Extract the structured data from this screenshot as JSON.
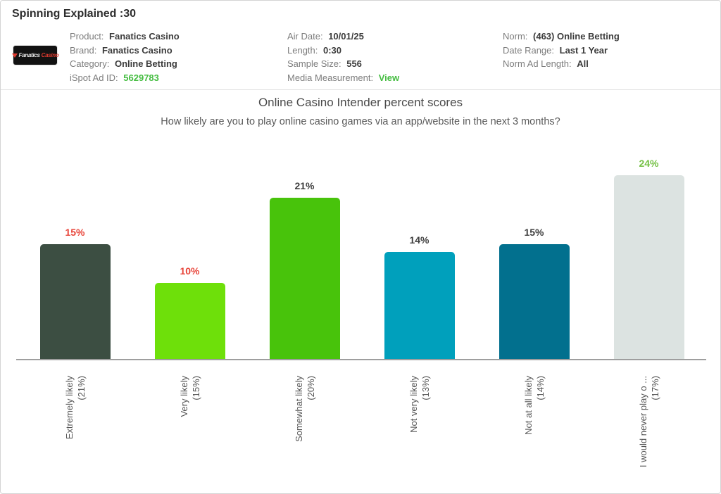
{
  "colors": {
    "link_green": "#45bd41",
    "axis_gray": "#9e9e9e",
    "page_border": "#d4d4d4"
  },
  "header": {
    "title": "Spinning Explained :30",
    "logo": {
      "icon": "fanatics-flag-icon",
      "text_primary": "Fanatics",
      "text_secondary": "Casino"
    },
    "meta_columns": [
      {
        "rows": [
          {
            "label": "Product:",
            "value": "Fanatics Casino"
          },
          {
            "label": "Brand:",
            "value": "Fanatics Casino"
          },
          {
            "label": "Category:",
            "value": "Online Betting"
          },
          {
            "label": "iSpot Ad ID:",
            "value": "5629783"
          }
        ]
      },
      {
        "rows": [
          {
            "label": "Air Date:",
            "value": "10/01/25"
          },
          {
            "label": "Length:",
            "value": "0:30"
          },
          {
            "label": "Sample Size:",
            "value": "556"
          },
          {
            "label": "Media Measurement:",
            "value": "View"
          }
        ]
      },
      {
        "rows": [
          {
            "label": "Norm:",
            "value": "(463) Online Betting"
          },
          {
            "label": "Date Range:",
            "value": "Last 1 Year"
          },
          {
            "label": "Norm Ad Length:",
            "value": "All"
          }
        ]
      }
    ]
  },
  "chart_data": {
    "type": "bar",
    "title": "Online Casino Intender percent scores",
    "subtitle": "How likely are you to play online casino games via an app/website in the next 3 months?",
    "categories": [
      "Extremely likely",
      "Very likely",
      "Somewhat likely",
      "Not very likely",
      "Not at all likely",
      "I would never play o ..."
    ],
    "category_norms": [
      "(21%)",
      "(15%)",
      "(20%)",
      "(13%)",
      "(14%)",
      "(17%)"
    ],
    "values": [
      15,
      10,
      21,
      14,
      15,
      24
    ],
    "value_labels": [
      "15%",
      "10%",
      "21%",
      "14%",
      "15%",
      "24%"
    ],
    "bar_colors": [
      "#3c4e42",
      "#6ee00a",
      "#48c30b",
      "#00a0bc",
      "#02708e",
      "#dce3e1"
    ],
    "value_label_colors": [
      "#e8453a",
      "#e8453a",
      "#3f3f3f",
      "#3f3f3f",
      "#3f3f3f",
      "#74c044"
    ],
    "xlabel": "",
    "ylabel": "",
    "ylim": [
      0,
      25
    ],
    "grid": false,
    "legend": false
  }
}
